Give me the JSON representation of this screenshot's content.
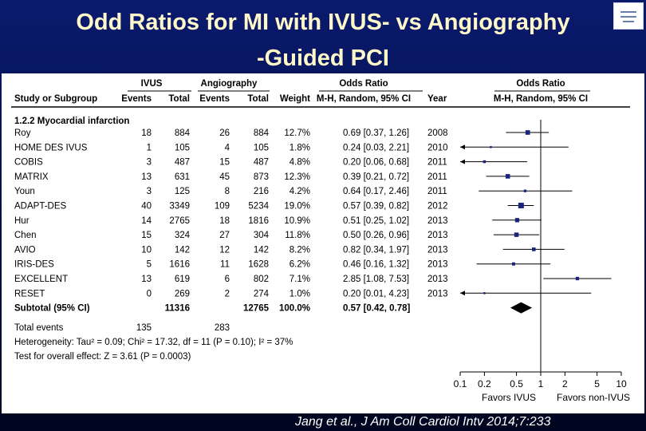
{
  "slide": {
    "title_line1": "Odd Ratios for MI with  IVUS- vs  Angiography",
    "title_line2": "-Guided PCI",
    "citation": "Jang et al., J Am Coll Cardiol Intv 2014;7:233"
  },
  "table": {
    "group_headers": {
      "ivus": "IVUS",
      "angio": "Angiography",
      "or_text": "Odds Ratio",
      "or_plot": "Odds Ratio"
    },
    "headers": {
      "study": "Study or Subgroup",
      "ivus_events": "Events",
      "ivus_total": "Total",
      "angio_events": "Events",
      "angio_total": "Total",
      "weight": "Weight",
      "method": "M-H, Random, 95% CI",
      "year": "Year",
      "plot_method": "M-H, Random, 95% CI"
    },
    "subgroup": "1.2.2 Myocardial infarction",
    "rows": [
      {
        "study": "Roy",
        "ie": "18",
        "it": "884",
        "ae": "26",
        "at": "884",
        "w": "12.7%",
        "ci": "0.69 [0.37, 1.26]",
        "year": "2008"
      },
      {
        "study": "HOME DES IVUS",
        "ie": "1",
        "it": "105",
        "ae": "4",
        "at": "105",
        "w": "1.8%",
        "ci": "0.24 [0.03, 2.21]",
        "year": "2010"
      },
      {
        "study": "COBIS",
        "ie": "3",
        "it": "487",
        "ae": "15",
        "at": "487",
        "w": "4.8%",
        "ci": "0.20 [0.06, 0.68]",
        "year": "2011"
      },
      {
        "study": "MATRIX",
        "ie": "13",
        "it": "631",
        "ae": "45",
        "at": "873",
        "w": "12.3%",
        "ci": "0.39 [0.21, 0.72]",
        "year": "2011"
      },
      {
        "study": "Youn",
        "ie": "3",
        "it": "125",
        "ae": "8",
        "at": "216",
        "w": "4.2%",
        "ci": "0.64 [0.17, 2.46]",
        "year": "2011"
      },
      {
        "study": "ADAPT-DES",
        "ie": "40",
        "it": "3349",
        "ae": "109",
        "at": "5234",
        "w": "19.0%",
        "ci": "0.57 [0.39, 0.82]",
        "year": "2012"
      },
      {
        "study": "Hur",
        "ie": "14",
        "it": "2765",
        "ae": "18",
        "at": "1816",
        "w": "10.9%",
        "ci": "0.51 [0.25, 1.02]",
        "year": "2013"
      },
      {
        "study": "Chen",
        "ie": "15",
        "it": "324",
        "ae": "27",
        "at": "304",
        "w": "11.8%",
        "ci": "0.50 [0.26, 0.96]",
        "year": "2013"
      },
      {
        "study": "AVIO",
        "ie": "10",
        "it": "142",
        "ae": "12",
        "at": "142",
        "w": "8.2%",
        "ci": "0.82 [0.34, 1.97]",
        "year": "2013"
      },
      {
        "study": "IRIS-DES",
        "ie": "5",
        "it": "1616",
        "ae": "11",
        "at": "1628",
        "w": "6.2%",
        "ci": "0.46 [0.16, 1.32]",
        "year": "2013"
      },
      {
        "study": "EXCELLENT",
        "ie": "13",
        "it": "619",
        "ae": "6",
        "at": "802",
        "w": "7.1%",
        "ci": "2.85 [1.08, 7.53]",
        "year": "2013"
      },
      {
        "study": "RESET",
        "ie": "0",
        "it": "269",
        "ae": "2",
        "at": "274",
        "w": "1.0%",
        "ci": "0.20 [0.01, 4.23]",
        "year": "2013"
      }
    ],
    "subtotal": {
      "study": "Subtotal (95% CI)",
      "it": "11316",
      "at": "12765",
      "w": "100.0%",
      "ci": "0.57 [0.42, 0.78]"
    },
    "total_events": {
      "label": "Total events",
      "ie": "135",
      "ae": "283"
    },
    "heterogeneity": "Heterogeneity: Tau² = 0.09; Chi² = 17.32, df = 11 (P = 0.10); I² = 37%",
    "overall_effect": "Test for overall effect: Z = 3.61 (P = 0.0003)"
  },
  "chart_data": {
    "type": "scatter",
    "subtype": "forest-plot",
    "title": "Odds Ratio",
    "subtitle": "M-H, Random, 95% CI",
    "x_scale": "log",
    "xlim": [
      0.1,
      10
    ],
    "ticks": [
      "0.1",
      "0.2",
      "0.5",
      "1",
      "2",
      "5",
      "10"
    ],
    "tick_values": [
      0.1,
      0.2,
      0.5,
      1,
      2,
      5,
      10
    ],
    "reference_line": 1,
    "favors_left": "Favors IVUS",
    "favors_right": "Favors non-IVUS",
    "studies": [
      "Roy",
      "HOME DES IVUS",
      "COBIS",
      "MATRIX",
      "Youn",
      "ADAPT-DES",
      "Hur",
      "Chen",
      "AVIO",
      "IRIS-DES",
      "EXCELLENT",
      "RESET"
    ],
    "or": [
      0.69,
      0.24,
      0.2,
      0.39,
      0.64,
      0.57,
      0.51,
      0.5,
      0.82,
      0.46,
      2.85,
      0.2
    ],
    "lower": [
      0.37,
      0.03,
      0.06,
      0.21,
      0.17,
      0.39,
      0.25,
      0.26,
      0.34,
      0.16,
      1.08,
      0.01
    ],
    "upper": [
      1.26,
      2.21,
      0.68,
      0.72,
      2.46,
      0.82,
      1.02,
      0.96,
      1.97,
      1.32,
      7.53,
      4.23
    ],
    "weight_percent": [
      12.7,
      1.8,
      4.8,
      12.3,
      4.2,
      19.0,
      10.9,
      11.8,
      8.2,
      6.2,
      7.1,
      1.0
    ],
    "pooled": {
      "or": 0.57,
      "lower": 0.42,
      "upper": 0.78
    },
    "colors": {
      "point": "#1a237e",
      "line": "#000000",
      "diamond": "#000000"
    }
  }
}
